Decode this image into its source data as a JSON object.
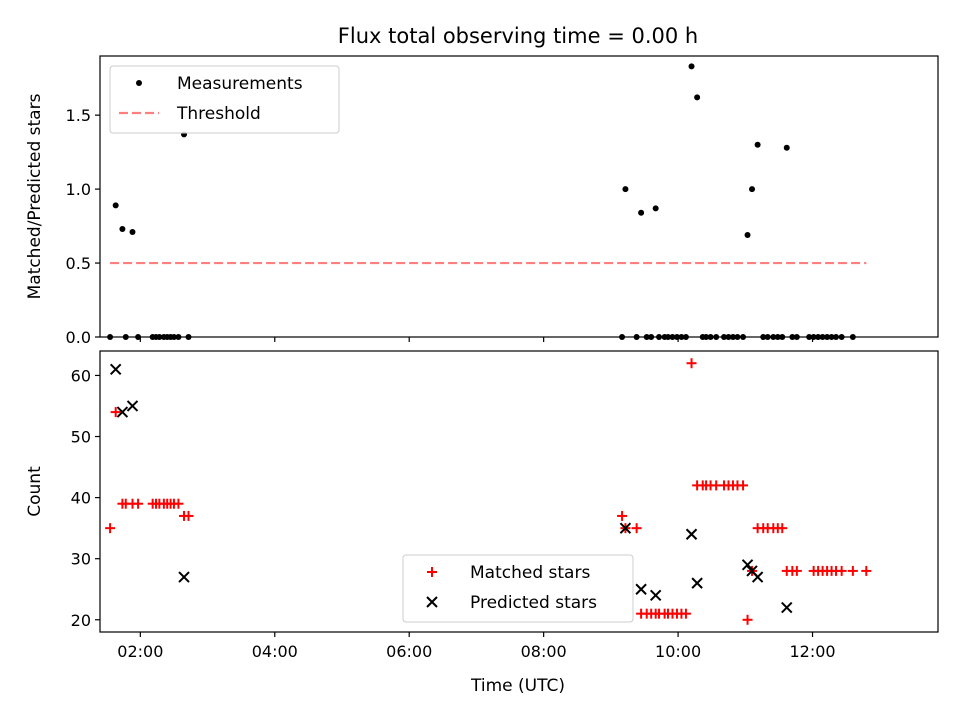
{
  "figure": {
    "title": "Flux total observing time = 0.00 h",
    "xlabel": "Time (UTC)"
  },
  "chart_data": [
    {
      "type": "scatter",
      "panel": "top",
      "ylabel": "Matched/Predicted stars",
      "xlim": [
        "01:24",
        "13:52"
      ],
      "ylim": [
        0,
        1.9
      ],
      "yticks": [
        0.0,
        0.5,
        1.0,
        1.5
      ],
      "ytick_labels": [
        "0.0",
        "0.5",
        "1.0",
        "1.5"
      ],
      "xticks": [
        "02:00",
        "04:00",
        "06:00",
        "08:00",
        "10:00",
        "12:00"
      ],
      "grid": false,
      "legend_position": "upper-left",
      "series": [
        {
          "name": "Measurements",
          "marker": "dot",
          "color": "#000000",
          "points": [
            [
              "01:33",
              0.0
            ],
            [
              "01:38",
              0.89
            ],
            [
              "01:44",
              0.73
            ],
            [
              "01:47",
              0.0
            ],
            [
              "01:53",
              0.71
            ],
            [
              "01:58",
              0.0
            ],
            [
              "02:11",
              0.0
            ],
            [
              "02:14",
              0.0
            ],
            [
              "02:17",
              0.0
            ],
            [
              "02:21",
              0.0
            ],
            [
              "02:24",
              0.0
            ],
            [
              "02:27",
              0.0
            ],
            [
              "02:30",
              0.0
            ],
            [
              "02:34",
              0.0
            ],
            [
              "02:39",
              1.37
            ],
            [
              "02:43",
              0.0
            ],
            [
              "09:10",
              0.0
            ],
            [
              "09:13",
              1.0
            ],
            [
              "09:23",
              0.0
            ],
            [
              "09:27",
              0.84
            ],
            [
              "09:32",
              0.0
            ],
            [
              "09:36",
              0.0
            ],
            [
              "09:40",
              0.87
            ],
            [
              "09:43",
              0.0
            ],
            [
              "09:48",
              0.0
            ],
            [
              "09:51",
              0.0
            ],
            [
              "09:55",
              0.0
            ],
            [
              "09:59",
              0.0
            ],
            [
              "10:03",
              0.0
            ],
            [
              "10:07",
              0.0
            ],
            [
              "10:12",
              1.83
            ],
            [
              "10:17",
              1.62
            ],
            [
              "10:22",
              0.0
            ],
            [
              "10:25",
              0.0
            ],
            [
              "10:29",
              0.0
            ],
            [
              "10:34",
              0.0
            ],
            [
              "10:41",
              0.0
            ],
            [
              "10:45",
              0.0
            ],
            [
              "10:49",
              0.0
            ],
            [
              "10:53",
              0.0
            ],
            [
              "10:58",
              0.0
            ],
            [
              "11:02",
              0.69
            ],
            [
              "11:06",
              1.0
            ],
            [
              "11:11",
              1.3
            ],
            [
              "11:16",
              0.0
            ],
            [
              "11:20",
              0.0
            ],
            [
              "11:25",
              0.0
            ],
            [
              "11:29",
              0.0
            ],
            [
              "11:33",
              0.0
            ],
            [
              "11:37",
              1.28
            ],
            [
              "11:42",
              0.0
            ],
            [
              "11:46",
              0.0
            ],
            [
              "11:57",
              0.0
            ],
            [
              "12:01",
              0.0
            ],
            [
              "12:05",
              0.0
            ],
            [
              "12:09",
              0.0
            ],
            [
              "12:13",
              0.0
            ],
            [
              "12:17",
              0.0
            ],
            [
              "12:21",
              0.0
            ],
            [
              "12:26",
              0.0
            ],
            [
              "12:36",
              0.0
            ]
          ]
        },
        {
          "name": "Threshold",
          "marker": "dashed-line",
          "color": "#ff7f7f",
          "points": [
            [
              "01:33",
              0.5
            ],
            [
              "12:48",
              0.5
            ]
          ]
        }
      ]
    },
    {
      "type": "scatter",
      "panel": "bottom",
      "ylabel": "Count",
      "xlim": [
        "01:24",
        "13:52"
      ],
      "ylim": [
        18,
        64
      ],
      "yticks": [
        20,
        30,
        40,
        50,
        60
      ],
      "ytick_labels": [
        "20",
        "30",
        "40",
        "50",
        "60"
      ],
      "xticks": [
        "02:00",
        "04:00",
        "06:00",
        "08:00",
        "10:00",
        "12:00"
      ],
      "xtick_labels": [
        "02:00",
        "04:00",
        "06:00",
        "08:00",
        "10:00",
        "12:00"
      ],
      "grid": false,
      "legend_position": "lower-center",
      "series": [
        {
          "name": "Matched stars",
          "marker": "plus",
          "color": "#ff0000",
          "points": [
            [
              "01:33",
              35
            ],
            [
              "01:38",
              54
            ],
            [
              "01:44",
              39
            ],
            [
              "01:47",
              39
            ],
            [
              "01:53",
              39
            ],
            [
              "01:58",
              39
            ],
            [
              "02:11",
              39
            ],
            [
              "02:14",
              39
            ],
            [
              "02:17",
              39
            ],
            [
              "02:21",
              39
            ],
            [
              "02:24",
              39
            ],
            [
              "02:27",
              39
            ],
            [
              "02:30",
              39
            ],
            [
              "02:34",
              39
            ],
            [
              "02:39",
              37
            ],
            [
              "02:43",
              37
            ],
            [
              "09:10",
              37
            ],
            [
              "09:13",
              35
            ],
            [
              "09:23",
              35
            ],
            [
              "09:27",
              21
            ],
            [
              "09:32",
              21
            ],
            [
              "09:36",
              21
            ],
            [
              "09:40",
              21
            ],
            [
              "09:43",
              21
            ],
            [
              "09:48",
              21
            ],
            [
              "09:51",
              21
            ],
            [
              "09:55",
              21
            ],
            [
              "09:59",
              21
            ],
            [
              "10:03",
              21
            ],
            [
              "10:07",
              21
            ],
            [
              "10:12",
              62
            ],
            [
              "10:17",
              42
            ],
            [
              "10:22",
              42
            ],
            [
              "10:25",
              42
            ],
            [
              "10:29",
              42
            ],
            [
              "10:34",
              42
            ],
            [
              "10:41",
              42
            ],
            [
              "10:45",
              42
            ],
            [
              "10:49",
              42
            ],
            [
              "10:53",
              42
            ],
            [
              "10:58",
              42
            ],
            [
              "11:02",
              20
            ],
            [
              "11:06",
              28
            ],
            [
              "11:11",
              35
            ],
            [
              "11:16",
              35
            ],
            [
              "11:20",
              35
            ],
            [
              "11:25",
              35
            ],
            [
              "11:29",
              35
            ],
            [
              "11:33",
              35
            ],
            [
              "11:37",
              28
            ],
            [
              "11:42",
              28
            ],
            [
              "11:46",
              28
            ],
            [
              "12:01",
              28
            ],
            [
              "12:05",
              28
            ],
            [
              "12:09",
              28
            ],
            [
              "12:13",
              28
            ],
            [
              "12:17",
              28
            ],
            [
              "12:21",
              28
            ],
            [
              "12:26",
              28
            ],
            [
              "12:36",
              28
            ],
            [
              "12:48",
              28
            ]
          ]
        },
        {
          "name": "Predicted stars",
          "marker": "x",
          "color": "#000000",
          "points": [
            [
              "01:38",
              61
            ],
            [
              "01:44",
              54
            ],
            [
              "01:53",
              55
            ],
            [
              "02:39",
              27
            ],
            [
              "09:13",
              35
            ],
            [
              "09:27",
              25
            ],
            [
              "09:40",
              24
            ],
            [
              "10:12",
              34
            ],
            [
              "10:17",
              26
            ],
            [
              "11:02",
              29
            ],
            [
              "11:06",
              28
            ],
            [
              "11:11",
              27
            ],
            [
              "11:37",
              22
            ]
          ]
        }
      ]
    }
  ]
}
